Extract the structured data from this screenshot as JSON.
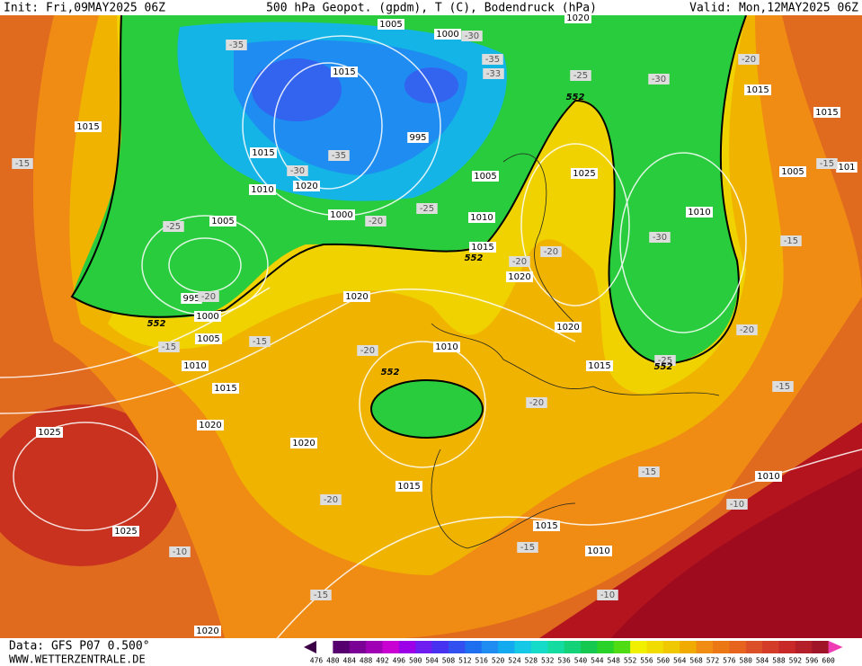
{
  "header": {
    "init": "Init: Fri,09MAY2025 06Z",
    "title": "500 hPa Geopot. (gpdm), T (C), Bodendruck (hPa)",
    "valid": "Valid: Mon,12MAY2025 06Z"
  },
  "footer": {
    "source": "Data: GFS P07 0.500°",
    "site": "WWW.WETTERZENTRALE.DE"
  },
  "colorbar": {
    "labels": [
      476,
      480,
      484,
      488,
      492,
      496,
      500,
      504,
      508,
      512,
      516,
      520,
      524,
      528,
      532,
      536,
      540,
      544,
      548,
      552,
      556,
      560,
      564,
      568,
      572,
      576,
      580,
      584,
      588,
      592,
      596,
      600
    ],
    "colors": [
      "#3c0046",
      "#55006e",
      "#7a0096",
      "#a000b4",
      "#c800d2",
      "#9b00e6",
      "#6e1ef0",
      "#4632f0",
      "#3250f0",
      "#1e6ef0",
      "#1e8cf0",
      "#14aaf0",
      "#14c8e6",
      "#14dcc8",
      "#14dca0",
      "#14d278",
      "#14c850",
      "#28d228",
      "#50dc14",
      "#f0f000",
      "#f0dc00",
      "#f0c800",
      "#f0aa00",
      "#f08c14",
      "#eb7814",
      "#e6641e",
      "#dc5028",
      "#d23c28",
      "#c82828",
      "#b41e28",
      "#a01428",
      "#f03cb4"
    ]
  },
  "map_labels": {
    "pressure": [
      "1005",
      "1000",
      "1015",
      "995",
      "1015",
      "1020",
      "1010",
      "1005",
      "1000",
      "1005",
      "1010",
      "1015",
      "1025",
      "1010",
      "1015",
      "1015",
      "1005",
      "1015",
      "995",
      "1000",
      "1005",
      "1010",
      "1015",
      "1020",
      "1025",
      "1020",
      "1020",
      "1020",
      "1010",
      "1015",
      "1020",
      "1015",
      "1025",
      "1015",
      "1010",
      "1010",
      "1020",
      "1020",
      "101"
    ],
    "temperature": [
      "-35",
      "-30",
      "-35",
      "-33",
      "-25",
      "-30",
      "-20",
      "-15",
      "-35",
      "-30",
      "-25",
      "-20",
      "-25",
      "-20",
      "-20",
      "-20",
      "-30",
      "-15",
      "-15",
      "-15",
      "-15",
      "-20",
      "-25",
      "-20",
      "-15",
      "-20",
      "-15",
      "-20",
      "-15",
      "-10",
      "-10",
      "-10",
      "-15"
    ],
    "height": [
      "552",
      "552",
      "552",
      "552",
      "552"
    ]
  }
}
